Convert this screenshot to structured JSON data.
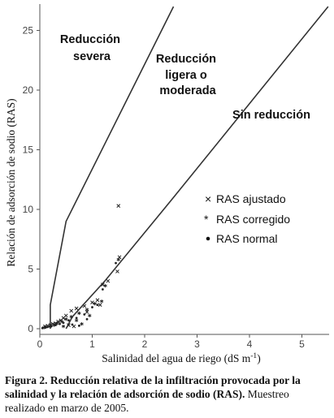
{
  "chart_data": {
    "type": "scatter",
    "ylabel": "Relación de adsorción de sodio (RAS)",
    "xlim": [
      0,
      5.5
    ],
    "ylim": [
      0,
      27
    ],
    "xticks": [
      "0",
      "1",
      "2",
      "3",
      "4",
      "5"
    ],
    "yticks": [
      "0",
      "5",
      "10",
      "15",
      "20",
      "25"
    ],
    "xlabel_parts": {
      "text": "Salinidad del agua de riego (dS m",
      "superscript": "-1",
      "close": ")"
    },
    "boundaries": [
      {
        "name": "upper",
        "points": [
          [
            0.2,
            0
          ],
          [
            0.2,
            2
          ],
          [
            0.5,
            9
          ],
          [
            2.55,
            27
          ]
        ]
      },
      {
        "name": "lower",
        "points": [
          [
            0.5,
            0
          ],
          [
            0.62,
            1
          ],
          [
            1.24,
            4
          ],
          [
            2.55,
            11
          ],
          [
            4.1,
            19.4
          ],
          [
            5.5,
            27
          ]
        ]
      }
    ],
    "regions": [
      {
        "label_lines": [
          "Reducción",
          "severa"
        ]
      },
      {
        "label_lines": [
          "Reducción",
          "ligera o",
          "moderada"
        ]
      },
      {
        "label_lines": [
          "Sin reducción"
        ]
      }
    ],
    "series": [
      {
        "name": "RAS ajustado",
        "marker": "x",
        "points": [
          [
            1.5,
            10.3
          ],
          [
            1.52,
            6.0
          ],
          [
            1.48,
            4.8
          ],
          [
            1.3,
            4.0
          ],
          [
            1.2,
            3.7
          ],
          [
            1.1,
            2.4
          ],
          [
            1.0,
            2.2
          ],
          [
            0.85,
            1.9
          ],
          [
            0.7,
            1.7
          ],
          [
            0.6,
            1.5
          ],
          [
            0.5,
            1.1
          ],
          [
            0.45,
            0.9
          ],
          [
            0.4,
            0.7
          ],
          [
            0.35,
            0.6
          ],
          [
            0.3,
            0.45
          ],
          [
            0.25,
            0.4
          ],
          [
            0.2,
            0.3
          ],
          [
            0.15,
            0.25
          ],
          [
            0.1,
            0.2
          ],
          [
            0.9,
            1.4
          ],
          [
            1.15,
            2.0
          ],
          [
            0.55,
            0.3
          ],
          [
            0.65,
            0.2
          ]
        ]
      },
      {
        "name": "RAS corregido",
        "marker": "*",
        "points": [
          [
            1.5,
            5.8
          ],
          [
            1.25,
            3.6
          ],
          [
            1.05,
            2.1
          ],
          [
            0.9,
            1.6
          ],
          [
            0.75,
            1.3
          ],
          [
            0.6,
            1.0
          ],
          [
            0.5,
            0.8
          ],
          [
            0.42,
            0.6
          ],
          [
            0.33,
            0.45
          ],
          [
            0.27,
            0.3
          ],
          [
            0.2,
            0.2
          ],
          [
            0.12,
            0.15
          ],
          [
            0.08,
            0.1
          ],
          [
            1.18,
            2.3
          ],
          [
            0.95,
            1.1
          ],
          [
            0.7,
            0.7
          ],
          [
            0.8,
            0.4
          ],
          [
            0.45,
            0.2
          ]
        ]
      },
      {
        "name": "RAS normal",
        "marker": "dot",
        "points": [
          [
            1.45,
            5.5
          ],
          [
            1.2,
            3.3
          ],
          [
            1.0,
            1.8
          ],
          [
            0.85,
            1.2
          ],
          [
            0.7,
            0.9
          ],
          [
            0.55,
            0.7
          ],
          [
            0.45,
            0.5
          ],
          [
            0.38,
            0.4
          ],
          [
            0.3,
            0.3
          ],
          [
            0.22,
            0.2
          ],
          [
            0.15,
            0.15
          ],
          [
            0.1,
            0.1
          ],
          [
            0.05,
            0.05
          ],
          [
            1.1,
            2.0
          ],
          [
            0.9,
            0.8
          ],
          [
            0.62,
            0.35
          ],
          [
            0.75,
            0.25
          ]
        ]
      }
    ]
  },
  "caption": {
    "bold": "Figura 2. Reducción relativa de la infiltración provocada por la salinidad y la relación de adsorción de sodio (RAS).",
    "normal": " Muestreo realizado en marzo de 2005."
  }
}
